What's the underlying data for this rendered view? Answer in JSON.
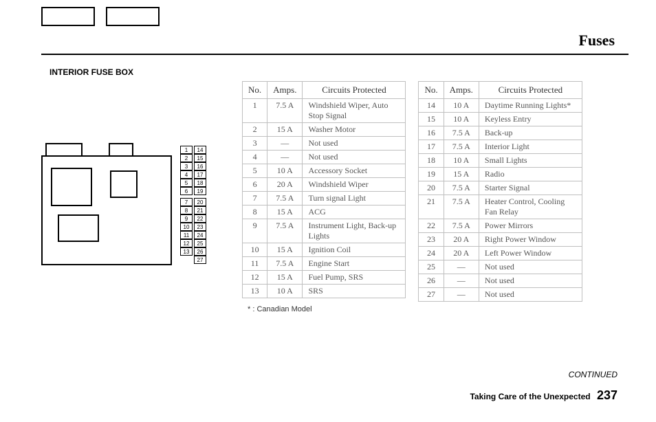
{
  "page": {
    "title": "Fuses",
    "section_label": "INTERIOR FUSE BOX",
    "footnote_marker": "*",
    "footnote_text": ": Canadian Model",
    "continued": "CONTINUED",
    "footer_text": "Taking Care of the Unexpected",
    "page_number": "237"
  },
  "table_headers": {
    "no": "No.",
    "amps": "Amps.",
    "circuits": "Circuits Protected"
  },
  "colors": {
    "text": "#000000",
    "border": "#bfbfbf",
    "cell_text": "#555555",
    "background": "#ffffff"
  },
  "fuses_left": [
    {
      "no": "1",
      "amps": "7.5 A",
      "circuit": "Windshield Wiper, Auto Stop Signal"
    },
    {
      "no": "2",
      "amps": "15 A",
      "circuit": "Washer Motor"
    },
    {
      "no": "3",
      "amps": "—",
      "circuit": "Not used"
    },
    {
      "no": "4",
      "amps": "—",
      "circuit": "Not used"
    },
    {
      "no": "5",
      "amps": "10 A",
      "circuit": "Accessory Socket"
    },
    {
      "no": "6",
      "amps": "20 A",
      "circuit": "Windshield Wiper"
    },
    {
      "no": "7",
      "amps": "7.5 A",
      "circuit": "Turn signal Light"
    },
    {
      "no": "8",
      "amps": "15 A",
      "circuit": "ACG"
    },
    {
      "no": "9",
      "amps": "7.5 A",
      "circuit": "Instrument Light, Back-up Lights"
    },
    {
      "no": "10",
      "amps": "15 A",
      "circuit": "Ignition Coil"
    },
    {
      "no": "11",
      "amps": "7.5 A",
      "circuit": "Engine Start"
    },
    {
      "no": "12",
      "amps": "15 A",
      "circuit": "Fuel Pump, SRS"
    },
    {
      "no": "13",
      "amps": "10 A",
      "circuit": "SRS"
    }
  ],
  "fuses_right": [
    {
      "no": "14",
      "amps": "10 A",
      "circuit": "Daytime Running Lights*"
    },
    {
      "no": "15",
      "amps": "10 A",
      "circuit": "Keyless Entry"
    },
    {
      "no": "16",
      "amps": "7.5 A",
      "circuit": "Back-up"
    },
    {
      "no": "17",
      "amps": "7.5 A",
      "circuit": "Interior Light"
    },
    {
      "no": "18",
      "amps": "10 A",
      "circuit": "Small Lights"
    },
    {
      "no": "19",
      "amps": "15 A",
      "circuit": "Radio"
    },
    {
      "no": "20",
      "amps": "7.5 A",
      "circuit": "Starter Signal"
    },
    {
      "no": "21",
      "amps": "7.5 A",
      "circuit": "Heater Control, Cooling Fan Relay"
    },
    {
      "no": "22",
      "amps": "7.5 A",
      "circuit": "Power Mirrors"
    },
    {
      "no": "23",
      "amps": "20 A",
      "circuit": "Right Power Window"
    },
    {
      "no": "24",
      "amps": "20 A",
      "circuit": "Left Power Window"
    },
    {
      "no": "25",
      "amps": "—",
      "circuit": "Not used"
    },
    {
      "no": "26",
      "amps": "—",
      "circuit": "Not used"
    },
    {
      "no": "27",
      "amps": "—",
      "circuit": "Not used"
    }
  ],
  "diagram": {
    "left_slots_top": [
      "1",
      "2",
      "3",
      "4",
      "5",
      "6"
    ],
    "left_slots_bottom": [
      "7",
      "8",
      "9",
      "10",
      "11",
      "12",
      "13"
    ],
    "right_slots_top": [
      "14",
      "15",
      "16",
      "17",
      "18",
      "19"
    ],
    "right_slots_bottom": [
      "20",
      "21",
      "22",
      "23",
      "24",
      "25",
      "26",
      "27"
    ]
  }
}
